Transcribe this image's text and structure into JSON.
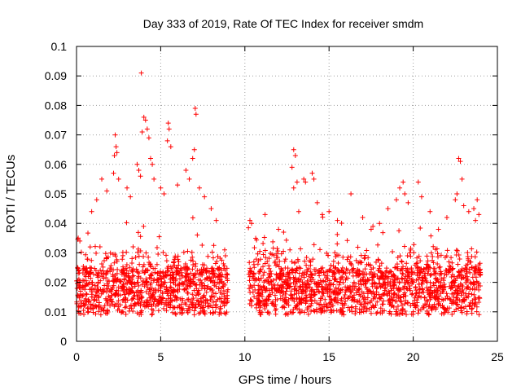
{
  "chart_data": {
    "type": "scatter",
    "title": "Day 333 of 2019, Rate Of TEC Index for receiver smdm",
    "xlabel": "GPS time / hours",
    "ylabel": "ROTI / TECUs",
    "xlim": [
      0,
      25
    ],
    "ylim": [
      0,
      0.1
    ],
    "xticks": [
      0,
      5,
      10,
      15,
      20,
      25
    ],
    "xtick_labels": [
      "0",
      "5",
      "10",
      "15",
      "20",
      "25"
    ],
    "yticks": [
      0,
      0.01,
      0.02,
      0.03,
      0.04,
      0.05,
      0.06,
      0.07,
      0.08,
      0.09,
      0.1
    ],
    "ytick_labels": [
      "0",
      "0.01",
      "0.02",
      "0.03",
      "0.04",
      "0.05",
      "0.06",
      "0.07",
      "0.08",
      "0.09",
      "0.1"
    ],
    "grid": true,
    "marker": "+",
    "color": "#ff0000",
    "data_gap_hours": [
      9.0,
      10.2
    ],
    "series": [
      {
        "name": "ROTI",
        "points": [
          [
            3.85,
            0.091
          ],
          [
            4.0,
            0.076
          ],
          [
            4.1,
            0.075
          ],
          [
            4.2,
            0.072
          ],
          [
            3.9,
            0.071
          ],
          [
            4.3,
            0.069
          ],
          [
            5.45,
            0.074
          ],
          [
            5.5,
            0.072
          ],
          [
            5.4,
            0.068
          ],
          [
            5.6,
            0.066
          ],
          [
            7.05,
            0.079
          ],
          [
            7.1,
            0.077
          ],
          [
            7.0,
            0.065
          ],
          [
            6.9,
            0.062
          ],
          [
            2.3,
            0.07
          ],
          [
            2.35,
            0.066
          ],
          [
            2.4,
            0.064
          ],
          [
            2.25,
            0.063
          ],
          [
            2.2,
            0.057
          ],
          [
            2.5,
            0.055
          ],
          [
            1.5,
            0.055
          ],
          [
            1.8,
            0.051
          ],
          [
            1.2,
            0.048
          ],
          [
            0.9,
            0.044
          ],
          [
            0.1,
            0.035
          ],
          [
            0.2,
            0.034
          ],
          [
            3.0,
            0.052
          ],
          [
            3.2,
            0.049
          ],
          [
            3.6,
            0.06
          ],
          [
            3.7,
            0.058
          ],
          [
            3.8,
            0.056
          ],
          [
            4.4,
            0.062
          ],
          [
            4.5,
            0.06
          ],
          [
            4.6,
            0.055
          ],
          [
            5.0,
            0.052
          ],
          [
            5.2,
            0.05
          ],
          [
            6.0,
            0.053
          ],
          [
            6.5,
            0.058
          ],
          [
            6.7,
            0.055
          ],
          [
            7.3,
            0.052
          ],
          [
            7.6,
            0.049
          ],
          [
            8.0,
            0.045
          ],
          [
            8.3,
            0.041
          ],
          [
            8.8,
            0.031
          ],
          [
            10.3,
            0.041
          ],
          [
            10.4,
            0.04
          ],
          [
            11.2,
            0.043
          ],
          [
            12.0,
            0.038
          ],
          [
            12.3,
            0.037
          ],
          [
            12.9,
            0.065
          ],
          [
            13.0,
            0.063
          ],
          [
            12.8,
            0.059
          ],
          [
            13.1,
            0.054
          ],
          [
            12.9,
            0.052
          ],
          [
            13.5,
            0.055
          ],
          [
            13.6,
            0.054
          ],
          [
            13.2,
            0.044
          ],
          [
            14.0,
            0.057
          ],
          [
            14.1,
            0.055
          ],
          [
            14.3,
            0.047
          ],
          [
            14.6,
            0.043
          ],
          [
            15.0,
            0.044
          ],
          [
            15.5,
            0.041
          ],
          [
            16.3,
            0.05
          ],
          [
            17.0,
            0.042
          ],
          [
            17.5,
            0.038
          ],
          [
            18.0,
            0.04
          ],
          [
            18.5,
            0.045
          ],
          [
            19.0,
            0.048
          ],
          [
            19.2,
            0.052
          ],
          [
            19.4,
            0.054
          ],
          [
            19.5,
            0.05
          ],
          [
            19.7,
            0.047
          ],
          [
            20.3,
            0.054
          ],
          [
            20.5,
            0.049
          ],
          [
            21.0,
            0.044
          ],
          [
            21.5,
            0.038
          ],
          [
            22.0,
            0.042
          ],
          [
            22.5,
            0.048
          ],
          [
            22.7,
            0.062
          ],
          [
            22.8,
            0.061
          ],
          [
            22.9,
            0.055
          ],
          [
            22.6,
            0.05
          ],
          [
            23.0,
            0.046
          ],
          [
            23.3,
            0.044
          ],
          [
            23.6,
            0.045
          ],
          [
            23.8,
            0.048
          ],
          [
            23.9,
            0.043
          ],
          [
            23.7,
            0.041
          ]
        ]
      }
    ]
  }
}
